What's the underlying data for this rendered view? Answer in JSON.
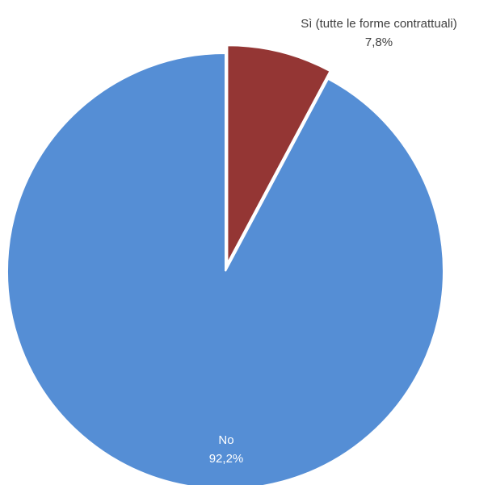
{
  "chart_data": {
    "type": "pie",
    "slices": [
      {
        "label": "Sì (tutte le forme contrattuali)",
        "value": 7.8,
        "value_label": "7,8%",
        "color": "#943634",
        "exploded": true
      },
      {
        "label": "No",
        "value": 92.2,
        "value_label": "92,2%",
        "color": "#558ed5",
        "exploded": false
      }
    ],
    "legend": "none",
    "start_angle": "12 o'clock, clockwise"
  }
}
